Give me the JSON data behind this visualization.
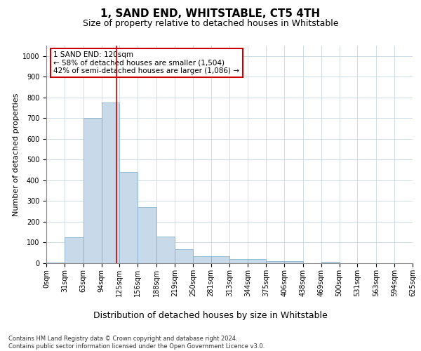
{
  "title": "1, SAND END, WHITSTABLE, CT5 4TH",
  "subtitle": "Size of property relative to detached houses in Whitstable",
  "dist_label": "Distribution of detached houses by size in Whitstable",
  "ylabel": "Number of detached properties",
  "bar_color": "#c8d9ea",
  "bar_edge_color": "#7aaac8",
  "bar_heights": [
    5,
    125,
    700,
    775,
    440,
    270,
    130,
    68,
    35,
    35,
    20,
    20,
    10,
    10,
    0,
    8,
    0,
    0,
    0,
    0
  ],
  "bin_edges": [
    0,
    31,
    63,
    94,
    125,
    156,
    188,
    219,
    250,
    281,
    313,
    344,
    375,
    406,
    438,
    469,
    500,
    531,
    563,
    594,
    625
  ],
  "red_line_x": 120,
  "ylim": [
    0,
    1050
  ],
  "yticks": [
    0,
    100,
    200,
    300,
    400,
    500,
    600,
    700,
    800,
    900,
    1000
  ],
  "annotation_text": "1 SAND END: 120sqm\n← 58% of detached houses are smaller (1,504)\n42% of semi-detached houses are larger (1,086) →",
  "annotation_box_color": "#ffffff",
  "annotation_box_edge_color": "#cc0000",
  "footer_line1": "Contains HM Land Registry data © Crown copyright and database right 2024.",
  "footer_line2": "Contains public sector information licensed under the Open Government Licence v3.0.",
  "background_color": "#ffffff",
  "grid_color": "#ccdde8",
  "title_fontsize": 11,
  "subtitle_fontsize": 9,
  "dist_label_fontsize": 9,
  "ylabel_fontsize": 8,
  "tick_fontsize": 7,
  "annot_fontsize": 7.5,
  "footer_fontsize": 6
}
